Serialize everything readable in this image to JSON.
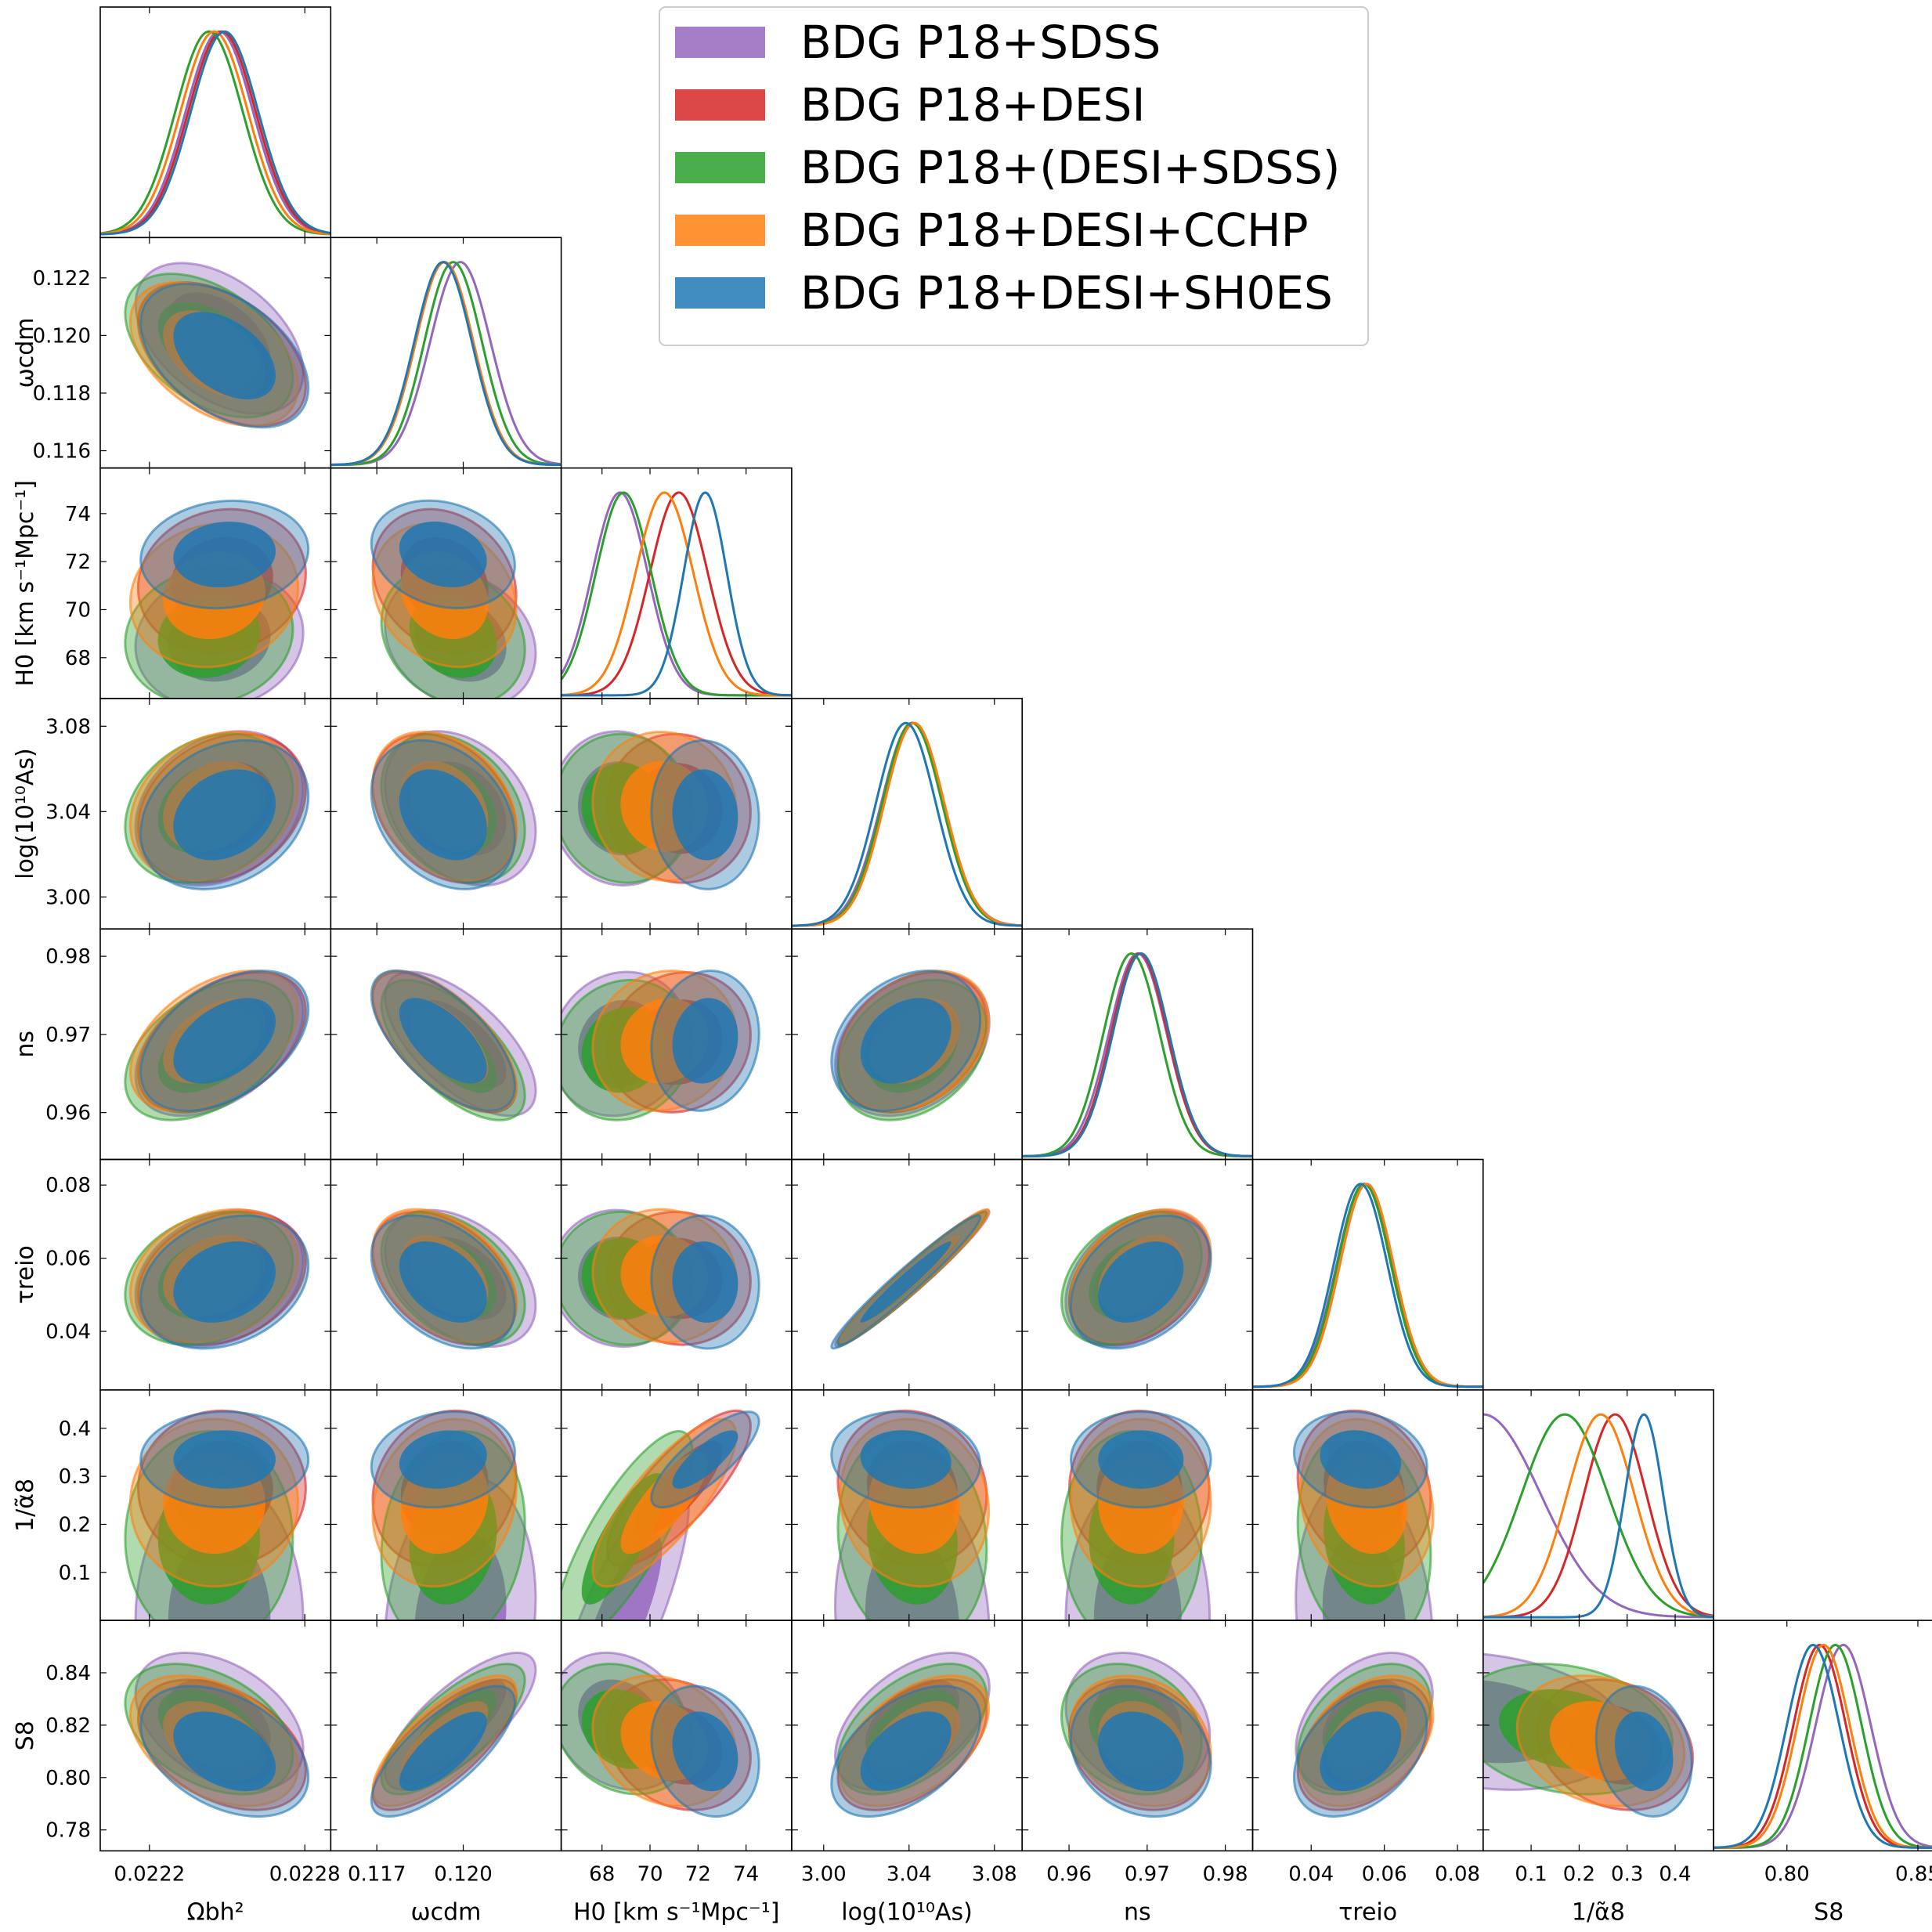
{
  "chart_data": {
    "type": "triangle",
    "title": "",
    "parameters": [
      {
        "key": "omega_b",
        "label": "Ωbh²",
        "range": [
          0.02201,
          0.0229
        ],
        "ticks": [
          0.0222,
          0.0228
        ],
        "tick_labels": [
          "0.0222",
          "0.0228"
        ]
      },
      {
        "key": "omega_cdm",
        "label": "ωcdm",
        "range": [
          0.1154,
          0.1234
        ],
        "ticks": [
          0.116,
          0.118,
          0.12,
          0.122
        ],
        "tick_labels": [
          "0.116",
          "0.118",
          "0.120",
          "0.122"
        ],
        "xticks": [
          0.117,
          0.12
        ],
        "xtick_labels": [
          "0.117",
          "0.120"
        ]
      },
      {
        "key": "H0",
        "label": "H0 [km s⁻¹Mpc⁻¹]",
        "range": [
          66.3,
          75.9
        ],
        "ticks": [
          68,
          70,
          72,
          74
        ],
        "tick_labels": [
          "68",
          "70",
          "72",
          "74"
        ]
      },
      {
        "key": "logAs",
        "label": "log(10¹⁰As)",
        "range": [
          2.985,
          3.093
        ],
        "ticks": [
          3.0,
          3.04,
          3.08
        ],
        "tick_labels": [
          "3.00",
          "3.04",
          "3.08"
        ]
      },
      {
        "key": "ns",
        "label": "ns",
        "range": [
          0.954,
          0.9835
        ],
        "ticks": [
          0.96,
          0.97,
          0.98
        ],
        "tick_labels": [
          "0.96",
          "0.97",
          "0.98"
        ]
      },
      {
        "key": "tau",
        "label": "τreio",
        "range": [
          0.024,
          0.087
        ],
        "ticks": [
          0.04,
          0.06,
          0.08
        ],
        "tick_labels": [
          "0.04",
          "0.06",
          "0.08"
        ]
      },
      {
        "key": "inv_alpha8",
        "label": "1/α̃8",
        "range": [
          0.0,
          0.48
        ],
        "ticks": [
          0.1,
          0.2,
          0.3,
          0.4
        ],
        "tick_labels": [
          "0.1",
          "0.2",
          "0.3",
          "0.4"
        ]
      },
      {
        "key": "S8",
        "label": "S8",
        "range": [
          0.772,
          0.86
        ],
        "ticks": [
          0.78,
          0.8,
          0.82,
          0.84
        ],
        "tick_labels": [
          "0.78",
          "0.80",
          "0.82",
          "0.84"
        ],
        "xticks": [
          0.8,
          0.85
        ],
        "xtick_labels": [
          "0.80",
          "0.85"
        ]
      }
    ],
    "series": [
      {
        "name": "BDG   P18+SDSS",
        "color": "#9467bd",
        "mean": {
          "omega_b": 0.02247,
          "omega_cdm": 0.1199,
          "H0": 68.75,
          "logAs": 3.0415,
          "ns": 0.9688,
          "tau": 0.0545,
          "inv_alpha8": 0.0,
          "S8": 0.8215
        },
        "sigma": {
          "omega_b": 0.00013,
          "omega_cdm": 0.00105,
          "H0": 1.15,
          "logAs": 0.0145,
          "ns": 0.0037,
          "tau": 0.0075,
          "inv_alpha8": 0.12,
          "S8": 0.0105
        }
      },
      {
        "name": "BDG   P18+DESI",
        "color": "#d62728",
        "mean": {
          "omega_b": 0.02248,
          "omega_cdm": 0.11935,
          "H0": 71.2,
          "logAs": 3.0415,
          "ns": 0.969,
          "tau": 0.0545,
          "inv_alpha8": 0.275,
          "S8": 0.8125
        },
        "sigma": {
          "omega_b": 0.00013,
          "omega_cdm": 0.001,
          "H0": 1.2,
          "logAs": 0.014,
          "ns": 0.0036,
          "tau": 0.0073,
          "inv_alpha8": 0.065,
          "S8": 0.01
        }
      },
      {
        "name": "BDG   P18+(DESI+SDSS)",
        "color": "#2ca02c",
        "mean": {
          "omega_b": 0.02243,
          "omega_cdm": 0.11965,
          "H0": 68.9,
          "logAs": 3.0415,
          "ns": 0.968,
          "tau": 0.0545,
          "inv_alpha8": 0.17,
          "S8": 0.8185
        },
        "sigma": {
          "omega_b": 0.00013,
          "omega_cdm": 0.001,
          "H0": 1.15,
          "logAs": 0.014,
          "ns": 0.0036,
          "tau": 0.0073,
          "inv_alpha8": 0.09,
          "S8": 0.01
        }
      },
      {
        "name": "BDG   P18+DESI+CCHP",
        "color": "#ff7f0e",
        "mean": {
          "omega_b": 0.02245,
          "omega_cdm": 0.11935,
          "H0": 70.6,
          "logAs": 3.0425,
          "ns": 0.9692,
          "tau": 0.0552,
          "inv_alpha8": 0.245,
          "S8": 0.814
        },
        "sigma": {
          "omega_b": 0.00013,
          "omega_cdm": 0.001,
          "H0": 1.2,
          "logAs": 0.014,
          "ns": 0.0036,
          "tau": 0.0073,
          "inv_alpha8": 0.07,
          "S8": 0.01
        }
      },
      {
        "name": "BDG   P18+DESI+SH0ES",
        "color": "#1f77b4",
        "mean": {
          "omega_b": 0.02249,
          "omega_cdm": 0.1193,
          "H0": 72.3,
          "logAs": 3.0385,
          "ns": 0.9692,
          "tau": 0.0535,
          "inv_alpha8": 0.335,
          "S8": 0.81
        },
        "sigma": {
          "omega_b": 0.00013,
          "omega_cdm": 0.001,
          "H0": 0.9,
          "logAs": 0.014,
          "ns": 0.0036,
          "tau": 0.0073,
          "inv_alpha8": 0.04,
          "S8": 0.01
        }
      }
    ],
    "correlations": {
      "omega_b|omega_cdm": -0.45,
      "omega_b|H0": 0.1,
      "omega_b|logAs": 0.25,
      "omega_b|ns": 0.45,
      "omega_b|tau": 0.25,
      "omega_b|inv_alpha8": 0.0,
      "omega_b|S8": -0.4,
      "omega_cdm|H0": -0.2,
      "omega_cdm|logAs": -0.3,
      "omega_cdm|ns": -0.65,
      "omega_cdm|tau": -0.4,
      "omega_cdm|inv_alpha8": 0.15,
      "omega_cdm|S8": 0.75,
      "H0|logAs": -0.05,
      "H0|ns": 0.1,
      "H0|tau": -0.05,
      "H0|inv_alpha8": 0.8,
      "H0|S8": -0.2,
      "logAs|ns": 0.3,
      "logAs|tau": 0.97,
      "logAs|inv_alpha8": -0.1,
      "logAs|S8": 0.5,
      "ns|tau": 0.35,
      "ns|inv_alpha8": 0.0,
      "ns|S8": -0.2,
      "tau|inv_alpha8": -0.15,
      "tau|S8": 0.4,
      "inv_alpha8|S8": -0.2
    },
    "legend_position": "top-right"
  }
}
